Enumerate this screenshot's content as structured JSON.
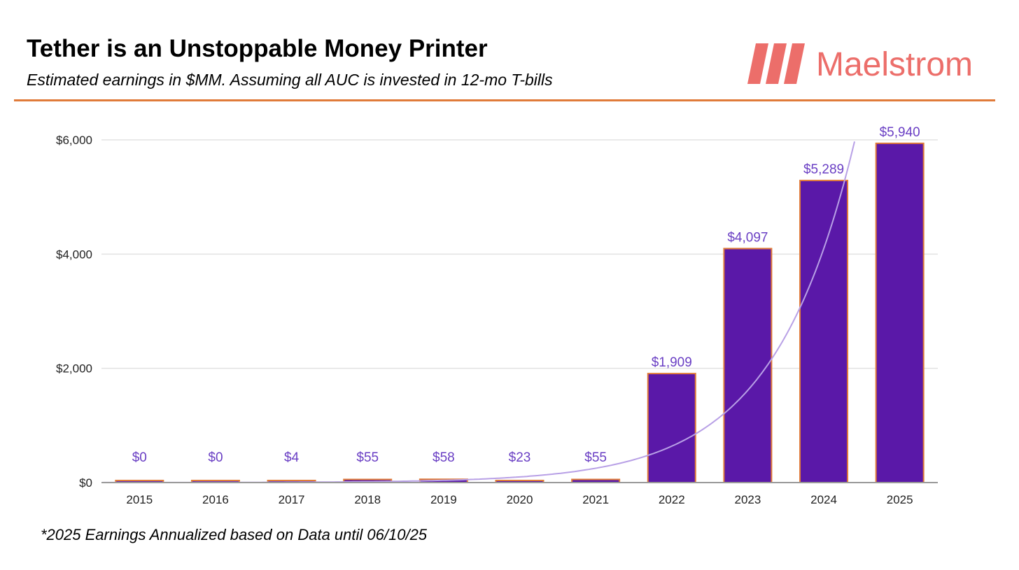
{
  "header": {
    "title": "Tether is an Unstoppable Money Printer",
    "subtitle": "Estimated earnings in $MM. Assuming all AUC is invested in 12-mo T-bills"
  },
  "brand": {
    "name": "Maelstrom",
    "color": "#ec6e6a"
  },
  "footnote": "*2025 Earnings Annualized based on Data until 06/10/25",
  "colors": {
    "bar": "#5a18a8",
    "bar_edge": "#e07b3a",
    "trend": "#b8a0e6",
    "label": "#6a3fc4",
    "rule": "#e07b3a"
  },
  "chart_data": {
    "type": "bar",
    "categories": [
      "2015",
      "2016",
      "2017",
      "2018",
      "2019",
      "2020",
      "2021",
      "2022",
      "2023",
      "2024",
      "2025"
    ],
    "values": [
      0,
      0,
      4,
      55,
      58,
      23,
      55,
      1909,
      4097,
      5289,
      5940
    ],
    "data_labels": [
      "$0",
      "$0",
      "$4",
      "$55",
      "$58",
      "$23",
      "$55",
      "$1,909",
      "$4,097",
      "$5,289",
      "$5,940"
    ],
    "y_ticks": [
      0,
      2000,
      4000,
      6000
    ],
    "y_tick_labels": [
      "$0",
      "$2,000",
      "$4,000",
      "$6,000"
    ],
    "ylim": [
      0,
      6000
    ],
    "grid": true,
    "trendline": "exponential"
  }
}
